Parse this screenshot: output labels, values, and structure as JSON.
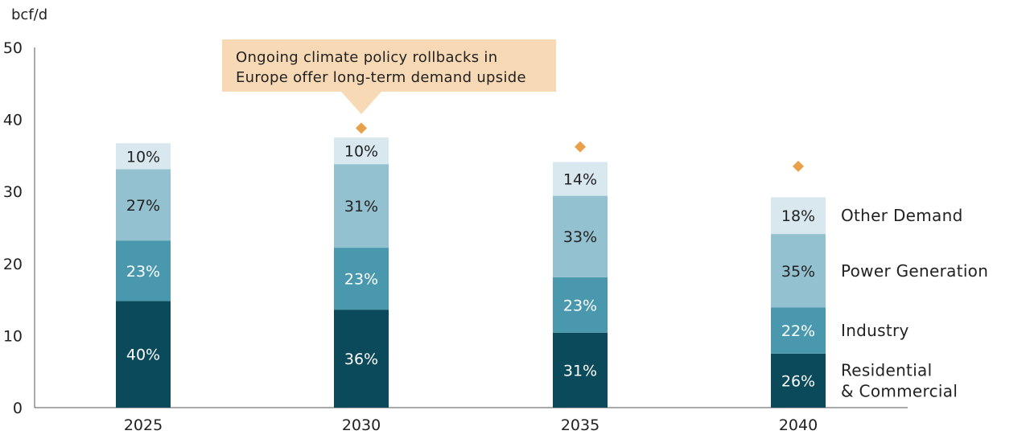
{
  "chart_data": {
    "type": "bar",
    "stacked": true,
    "ylabel": "bcf/d",
    "ylim": [
      0,
      50
    ],
    "yticks": [
      0,
      10,
      20,
      30,
      40,
      50
    ],
    "categories": [
      "2025",
      "2030",
      "2035",
      "2040"
    ],
    "series": [
      {
        "name": "Residential\n& Commercial",
        "color": "#0b4a5a",
        "values": [
          14.8,
          13.6,
          10.4,
          7.5
        ],
        "labels": [
          "40%",
          "36%",
          "31%",
          "26%"
        ],
        "label_color": "#ffffff"
      },
      {
        "name": "Industry",
        "color": "#4a98ad",
        "values": [
          8.4,
          8.6,
          7.7,
          6.4
        ],
        "labels": [
          "23%",
          "23%",
          "23%",
          "22%"
        ],
        "label_color": "#ffffff"
      },
      {
        "name": "Power Generation",
        "color": "#94c1cf",
        "values": [
          9.9,
          11.6,
          11.3,
          10.2
        ],
        "labels": [
          "27%",
          "31%",
          "33%",
          "35%"
        ],
        "label_color": "#222222"
      },
      {
        "name": "Other Demand",
        "color": "#d8e8ee",
        "values": [
          3.6,
          3.7,
          4.7,
          5.1
        ],
        "labels": [
          "10%",
          "10%",
          "14%",
          "18%"
        ],
        "label_color": "#222222"
      }
    ],
    "markers": {
      "values": [
        null,
        38.8,
        36.2,
        33.5
      ],
      "color": "#e9a04a",
      "shape": "diamond"
    },
    "annotation": {
      "text": [
        "Ongoing climate policy rollbacks in",
        "Europe offer long-term demand upside"
      ],
      "fill": "#f8d9b5",
      "anchor_category": "2030"
    },
    "legend_placement": "right-of-last-bar",
    "grid": false
  }
}
